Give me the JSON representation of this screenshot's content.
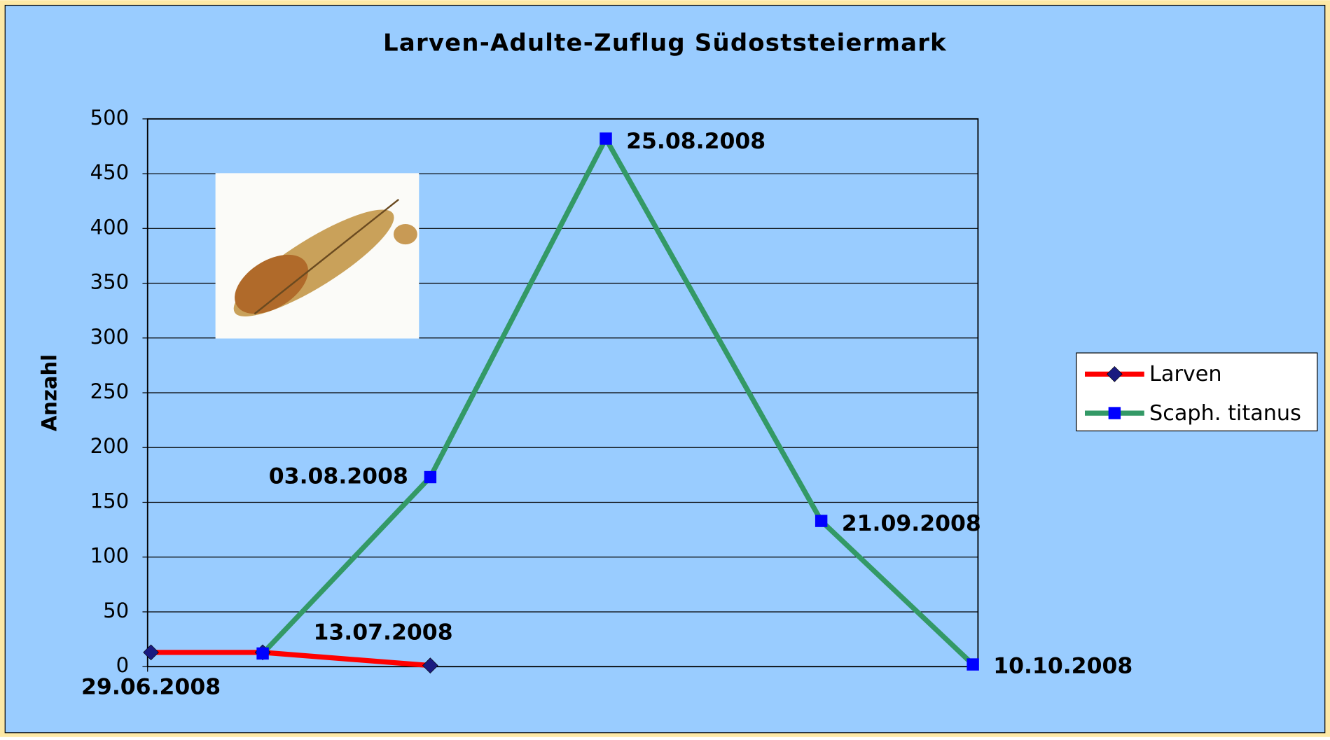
{
  "chart_data": {
    "type": "line",
    "title": "Larven-Adulte-Zuflug Südoststeiermark",
    "y_label": "Anzahl",
    "x": [
      "29.06.2008",
      "13.07.2008",
      "03.08.2008",
      "25.08.2008",
      "21.09.2008",
      "10.10.2008"
    ],
    "xlim": [
      "29.06.2008",
      "10.10.2008"
    ],
    "series": [
      {
        "name": "Larven",
        "color": "#ff0000",
        "marker_color": "#1a1a80",
        "marker": "diamond",
        "values": [
          13,
          13,
          1,
          null,
          null,
          null
        ]
      },
      {
        "name": "Scaph. titanus",
        "color": "#339966",
        "marker_color": "#0000ff",
        "marker": "square",
        "values": [
          null,
          12,
          173,
          482,
          133,
          2
        ]
      }
    ],
    "ylim": [
      0,
      500
    ],
    "yticks": [
      0,
      50,
      100,
      150,
      200,
      250,
      300,
      350,
      400,
      450,
      500
    ],
    "grid": true,
    "legend": "right"
  }
}
